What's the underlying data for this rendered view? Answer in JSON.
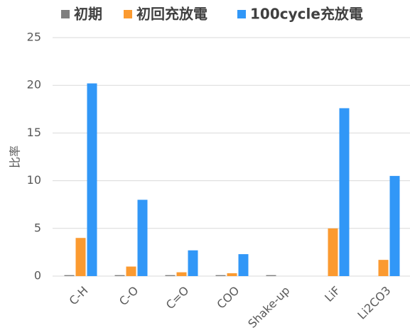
{
  "chart_data": {
    "type": "bar",
    "categories": [
      "C-H",
      "C-O",
      "C=O",
      "COO",
      "Shake-up",
      "LiF",
      "Li2CO3"
    ],
    "series": [
      {
        "name": "初期",
        "color": "#7f7f7f",
        "values": [
          0.1,
          0.1,
          0.1,
          0.1,
          0.1,
          0,
          0
        ]
      },
      {
        "name": "初回充放電",
        "color": "#fb9a30",
        "values": [
          4.0,
          1.0,
          0.4,
          0.3,
          0,
          5.0,
          1.7
        ]
      },
      {
        "name": "100cycle充放電",
        "color": "#3197f7",
        "values": [
          20.2,
          8.0,
          2.7,
          2.3,
          0,
          17.6,
          10.5
        ]
      }
    ],
    "y_label": "比率",
    "ylim": [
      0,
      25
    ],
    "yticks": [
      0,
      5,
      10,
      15,
      20,
      25
    ],
    "grid": true,
    "legend": "top"
  }
}
